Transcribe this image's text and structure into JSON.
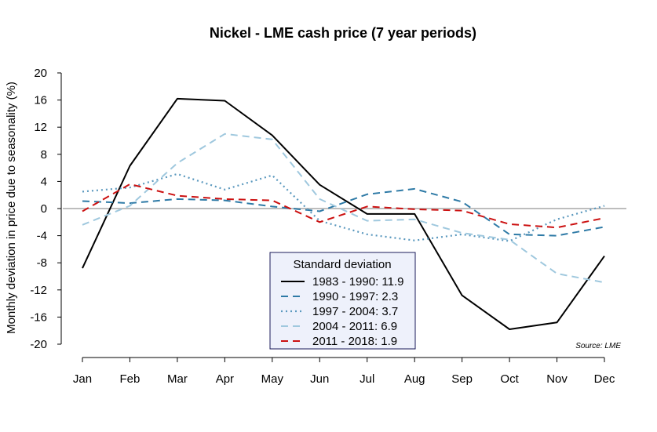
{
  "chart_data": {
    "type": "line",
    "title": "Nickel - LME cash price (7 year periods)",
    "ylabel": "Monthly deviation in price due to seasonality (%)",
    "xlabel": "",
    "ylim": [
      -20,
      20
    ],
    "yticks": [
      20,
      16,
      12,
      8,
      4,
      0,
      -4,
      -8,
      -12,
      -16,
      -20
    ],
    "categories": [
      "Jan",
      "Feb",
      "Mar",
      "Apr",
      "May",
      "Jun",
      "Jul",
      "Aug",
      "Sep",
      "Oct",
      "Nov",
      "Dec"
    ],
    "zero_line": true,
    "legend": {
      "title": "Standard deviation",
      "placement": "bottom-center"
    },
    "source": "Source: LME",
    "series": [
      {
        "name": "1983 - 1990: 11.9",
        "color": "#000000",
        "dash": "solid",
        "values": [
          -8.8,
          6.3,
          16.2,
          15.9,
          10.8,
          3.5,
          -0.8,
          -0.8,
          -12.8,
          -17.8,
          -16.8,
          -7.0
        ]
      },
      {
        "name": "1990 - 1997: 2.3",
        "color": "#2e7aa6",
        "dash": "dashed",
        "values": [
          1.1,
          0.8,
          1.4,
          1.2,
          0.3,
          -0.4,
          2.1,
          2.9,
          1.0,
          -3.8,
          -4.0,
          -2.7
        ]
      },
      {
        "name": "1997 - 2004: 3.7",
        "color": "#5a98be",
        "dash": "dotted",
        "values": [
          2.5,
          3.1,
          5.1,
          2.8,
          4.9,
          -1.8,
          -3.8,
          -4.7,
          -3.8,
          -4.8,
          -1.6,
          0.4
        ]
      },
      {
        "name": "2004 - 2011: 6.9",
        "color": "#9fc8de",
        "dash": "dashed",
        "values": [
          -2.4,
          0.4,
          6.7,
          11.0,
          10.2,
          1.4,
          -1.8,
          -1.6,
          -3.6,
          -4.6,
          -9.6,
          -10.9
        ]
      },
      {
        "name": "2011 - 2018: 1.9",
        "color": "#cc1111",
        "dash": "dashed",
        "values": [
          -0.4,
          3.6,
          1.9,
          1.4,
          1.2,
          -2.0,
          0.3,
          -0.1,
          -0.3,
          -2.3,
          -2.8,
          -1.4
        ]
      }
    ]
  }
}
